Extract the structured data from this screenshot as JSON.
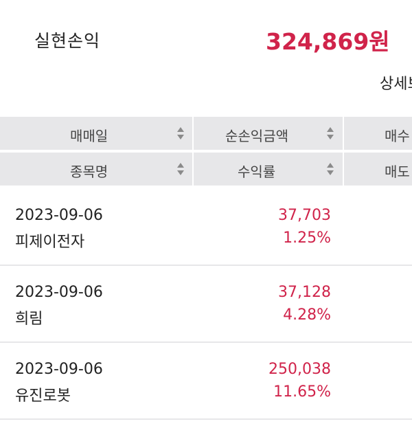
{
  "summary": {
    "label": "실현손익",
    "value": "324,869원",
    "detail_link": "상세보"
  },
  "table": {
    "headers_row1": [
      "매매일",
      "순손익금액",
      "매수"
    ],
    "headers_row2": [
      "종목명",
      "수익률",
      "매도"
    ],
    "rows": [
      {
        "date": "2023-09-06",
        "name": "피제이전자",
        "amount": "37,703",
        "rate": "1.25%"
      },
      {
        "date": "2023-09-06",
        "name": "희림",
        "amount": "37,128",
        "rate": "4.28%"
      },
      {
        "date": "2023-09-06",
        "name": "유진로봇",
        "amount": "250,038",
        "rate": "11.65%"
      }
    ]
  },
  "colors": {
    "accent": "#d0234a",
    "header_bg": "#e7e7e9"
  },
  "icons": {
    "sort": "sort-up-down-icon"
  }
}
